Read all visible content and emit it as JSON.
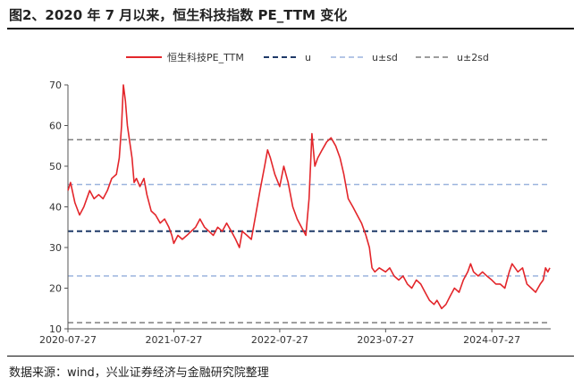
{
  "title": "图2、2020 年 7 月以来，恒生科技指数 PE_TTM 变化",
  "source": "数据来源：wind，兴业证券经济与金融研究院整理",
  "chart_data": {
    "type": "line",
    "ylim": [
      10,
      70
    ],
    "yticks": [
      10,
      20,
      30,
      40,
      50,
      60,
      70
    ],
    "xlim": [
      "2020-07-27",
      "2025-02-15"
    ],
    "xticks": [
      "2020-07-27",
      "2021-07-27",
      "2022-07-27",
      "2023-07-27",
      "2024-07-27"
    ],
    "grid": false,
    "legend": "top",
    "series": [
      {
        "name": "恒生科技PE_TTM",
        "color": "#e3262b",
        "style": "solid",
        "points": [
          [
            "2020-07-27",
            44
          ],
          [
            "2020-08-05",
            46
          ],
          [
            "2020-08-20",
            41
          ],
          [
            "2020-09-05",
            38
          ],
          [
            "2020-09-20",
            40
          ],
          [
            "2020-10-10",
            44
          ],
          [
            "2020-10-25",
            42
          ],
          [
            "2020-11-10",
            43
          ],
          [
            "2020-11-25",
            42
          ],
          [
            "2020-12-10",
            44
          ],
          [
            "2020-12-25",
            47
          ],
          [
            "2021-01-10",
            48
          ],
          [
            "2021-01-20",
            52
          ],
          [
            "2021-01-28",
            60
          ],
          [
            "2021-02-03",
            70
          ],
          [
            "2021-02-10",
            66
          ],
          [
            "2021-02-17",
            60
          ],
          [
            "2021-02-25",
            56
          ],
          [
            "2021-03-05",
            52
          ],
          [
            "2021-03-12",
            46
          ],
          [
            "2021-03-20",
            47
          ],
          [
            "2021-04-01",
            45
          ],
          [
            "2021-04-15",
            47
          ],
          [
            "2021-04-25",
            43
          ],
          [
            "2021-05-10",
            39
          ],
          [
            "2021-05-25",
            38
          ],
          [
            "2021-06-10",
            36
          ],
          [
            "2021-06-25",
            37
          ],
          [
            "2021-07-10",
            35
          ],
          [
            "2021-07-20",
            33
          ],
          [
            "2021-07-27",
            31
          ],
          [
            "2021-08-10",
            33
          ],
          [
            "2021-08-25",
            32
          ],
          [
            "2021-09-10",
            33
          ],
          [
            "2021-09-25",
            34
          ],
          [
            "2021-10-10",
            35
          ],
          [
            "2021-10-25",
            37
          ],
          [
            "2021-11-10",
            35
          ],
          [
            "2021-11-25",
            34
          ],
          [
            "2021-12-10",
            33
          ],
          [
            "2021-12-25",
            35
          ],
          [
            "2022-01-10",
            34
          ],
          [
            "2022-01-25",
            36
          ],
          [
            "2022-02-10",
            34
          ],
          [
            "2022-02-25",
            32
          ],
          [
            "2022-03-10",
            30
          ],
          [
            "2022-03-20",
            34
          ],
          [
            "2022-04-05",
            33
          ],
          [
            "2022-04-20",
            32
          ],
          [
            "2022-05-05",
            38
          ],
          [
            "2022-05-20",
            44
          ],
          [
            "2022-06-05",
            50
          ],
          [
            "2022-06-15",
            54
          ],
          [
            "2022-06-25",
            52
          ],
          [
            "2022-07-10",
            48
          ],
          [
            "2022-07-27",
            45
          ],
          [
            "2022-08-10",
            50
          ],
          [
            "2022-08-25",
            46
          ],
          [
            "2022-09-10",
            40
          ],
          [
            "2022-09-25",
            37
          ],
          [
            "2022-10-10",
            35
          ],
          [
            "2022-10-25",
            33
          ],
          [
            "2022-11-05",
            42
          ],
          [
            "2022-11-15",
            58
          ],
          [
            "2022-11-25",
            50
          ],
          [
            "2022-12-05",
            52
          ],
          [
            "2022-12-20",
            54
          ],
          [
            "2023-01-05",
            56
          ],
          [
            "2023-01-20",
            57
          ],
          [
            "2023-02-05",
            55
          ],
          [
            "2023-02-20",
            52
          ],
          [
            "2023-03-05",
            48
          ],
          [
            "2023-03-20",
            42
          ],
          [
            "2023-04-05",
            40
          ],
          [
            "2023-04-20",
            38
          ],
          [
            "2023-05-05",
            36
          ],
          [
            "2023-05-20",
            33
          ],
          [
            "2023-06-01",
            30
          ],
          [
            "2023-06-10",
            25
          ],
          [
            "2023-06-20",
            24
          ],
          [
            "2023-07-05",
            25
          ],
          [
            "2023-07-27",
            24
          ],
          [
            "2023-08-10",
            25
          ],
          [
            "2023-08-25",
            23
          ],
          [
            "2023-09-10",
            22
          ],
          [
            "2023-09-25",
            23
          ],
          [
            "2023-10-10",
            21
          ],
          [
            "2023-10-25",
            20
          ],
          [
            "2023-11-10",
            22
          ],
          [
            "2023-11-25",
            21
          ],
          [
            "2023-12-10",
            19
          ],
          [
            "2023-12-25",
            17
          ],
          [
            "2024-01-10",
            16
          ],
          [
            "2024-01-20",
            17
          ],
          [
            "2024-02-05",
            15
          ],
          [
            "2024-02-20",
            16
          ],
          [
            "2024-03-05",
            18
          ],
          [
            "2024-03-20",
            20
          ],
          [
            "2024-04-05",
            19
          ],
          [
            "2024-04-20",
            22
          ],
          [
            "2024-05-05",
            24
          ],
          [
            "2024-05-15",
            26
          ],
          [
            "2024-05-25",
            24
          ],
          [
            "2024-06-10",
            23
          ],
          [
            "2024-06-25",
            24
          ],
          [
            "2024-07-10",
            23
          ],
          [
            "2024-07-27",
            22
          ],
          [
            "2024-08-10",
            21
          ],
          [
            "2024-08-25",
            21
          ],
          [
            "2024-09-10",
            20
          ],
          [
            "2024-09-25",
            24
          ],
          [
            "2024-10-05",
            26
          ],
          [
            "2024-10-15",
            25
          ],
          [
            "2024-10-25",
            24
          ],
          [
            "2024-11-10",
            25
          ],
          [
            "2024-11-25",
            21
          ],
          [
            "2024-12-10",
            20
          ],
          [
            "2024-12-25",
            19
          ],
          [
            "2025-01-10",
            21
          ],
          [
            "2025-01-20",
            22
          ],
          [
            "2025-01-28",
            25
          ],
          [
            "2025-02-05",
            24
          ],
          [
            "2025-02-12",
            25
          ]
        ]
      },
      {
        "name": "u",
        "color": "#1f3a68",
        "style": "dash-heavy",
        "value": 34
      },
      {
        "name": "u±sd",
        "color": "#9bb4de",
        "style": "dash",
        "value_upper": 45.5,
        "value_lower": 23
      },
      {
        "name": "u±2sd",
        "color": "#7f7f7f",
        "style": "dash",
        "value_upper": 56.5,
        "value_lower": 11.5
      }
    ]
  }
}
